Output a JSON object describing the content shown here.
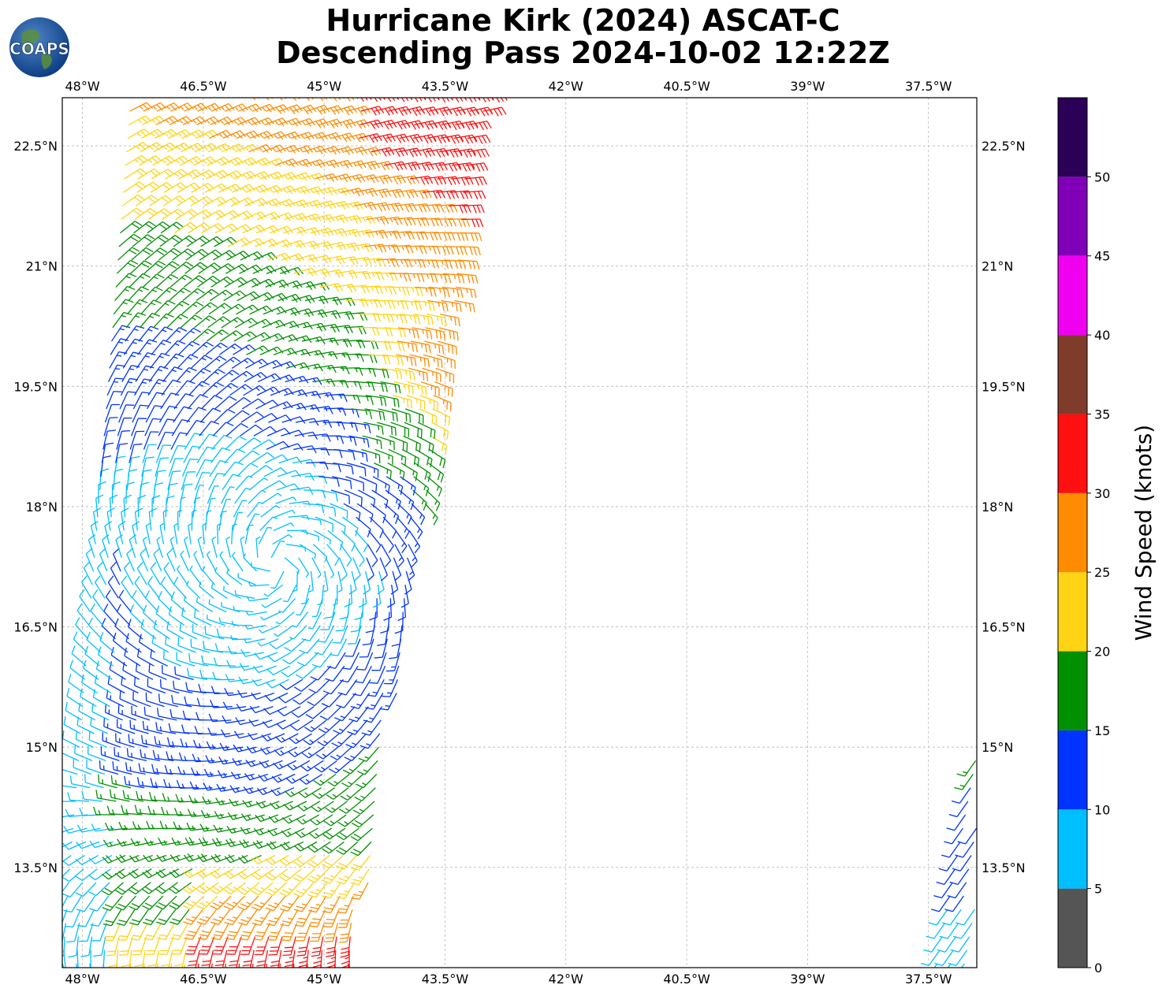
{
  "title_line1": "Hurricane Kirk (2024) ASCAT-C",
  "title_line2": "Descending Pass 2024-10-02 12:22Z",
  "logo_text": "COAPS",
  "chart_data": {
    "type": "wind-barb map",
    "xlim": [
      -48.25,
      -36.9
    ],
    "ylim": [
      12.25,
      23.1
    ],
    "x_ticks": [
      -48,
      -46.5,
      -45,
      -43.5,
      -42,
      -40.5,
      -39,
      -37.5
    ],
    "x_tick_labels": [
      "48°W",
      "46.5°W",
      "45°W",
      "43.5°W",
      "42°W",
      "40.5°W",
      "39°W",
      "37.5°W"
    ],
    "y_ticks": [
      13.5,
      15,
      16.5,
      18,
      19.5,
      21,
      22.5
    ],
    "y_tick_labels": [
      "13.5°N",
      "15°N",
      "16.5°N",
      "18°N",
      "19.5°N",
      "21°N",
      "22.5°N"
    ],
    "grid": true,
    "colorbar": {
      "label": "Wind Speed (knots)",
      "bounds": [
        0,
        5,
        10,
        15,
        20,
        25,
        30,
        35,
        40,
        45,
        50,
        55
      ],
      "tick_labels": [
        "0",
        "5",
        "10",
        "15",
        "20",
        "25",
        "30",
        "35",
        "40",
        "45",
        "50"
      ],
      "colors": [
        "#555555",
        "#00bfff",
        "#0033ff",
        "#009000",
        "#ffd414",
        "#ff8c00",
        "#ff1010",
        "#7f3c2a",
        "#f000f0",
        "#8000b8",
        "#2b0057"
      ]
    },
    "storm_center": [
      -45.6,
      17.3
    ],
    "swaths": [
      {
        "name": "main",
        "lon_left_bottom": -48.25,
        "lon_left_top": -47.4,
        "lon_right_bottom": -44.6,
        "lon_right_top": -43.0,
        "lat_bottom": 12.25,
        "lat_top": 23.1,
        "spacing_deg": 0.125
      },
      {
        "name": "east",
        "lon_left_bottom": -37.4,
        "lon_left_top": -36.6,
        "lon_right_bottom": -36.9,
        "lon_right_top": -36.9,
        "lat_bottom": 12.25,
        "lat_top": 16.5,
        "spacing_deg": 0.125
      }
    ]
  }
}
